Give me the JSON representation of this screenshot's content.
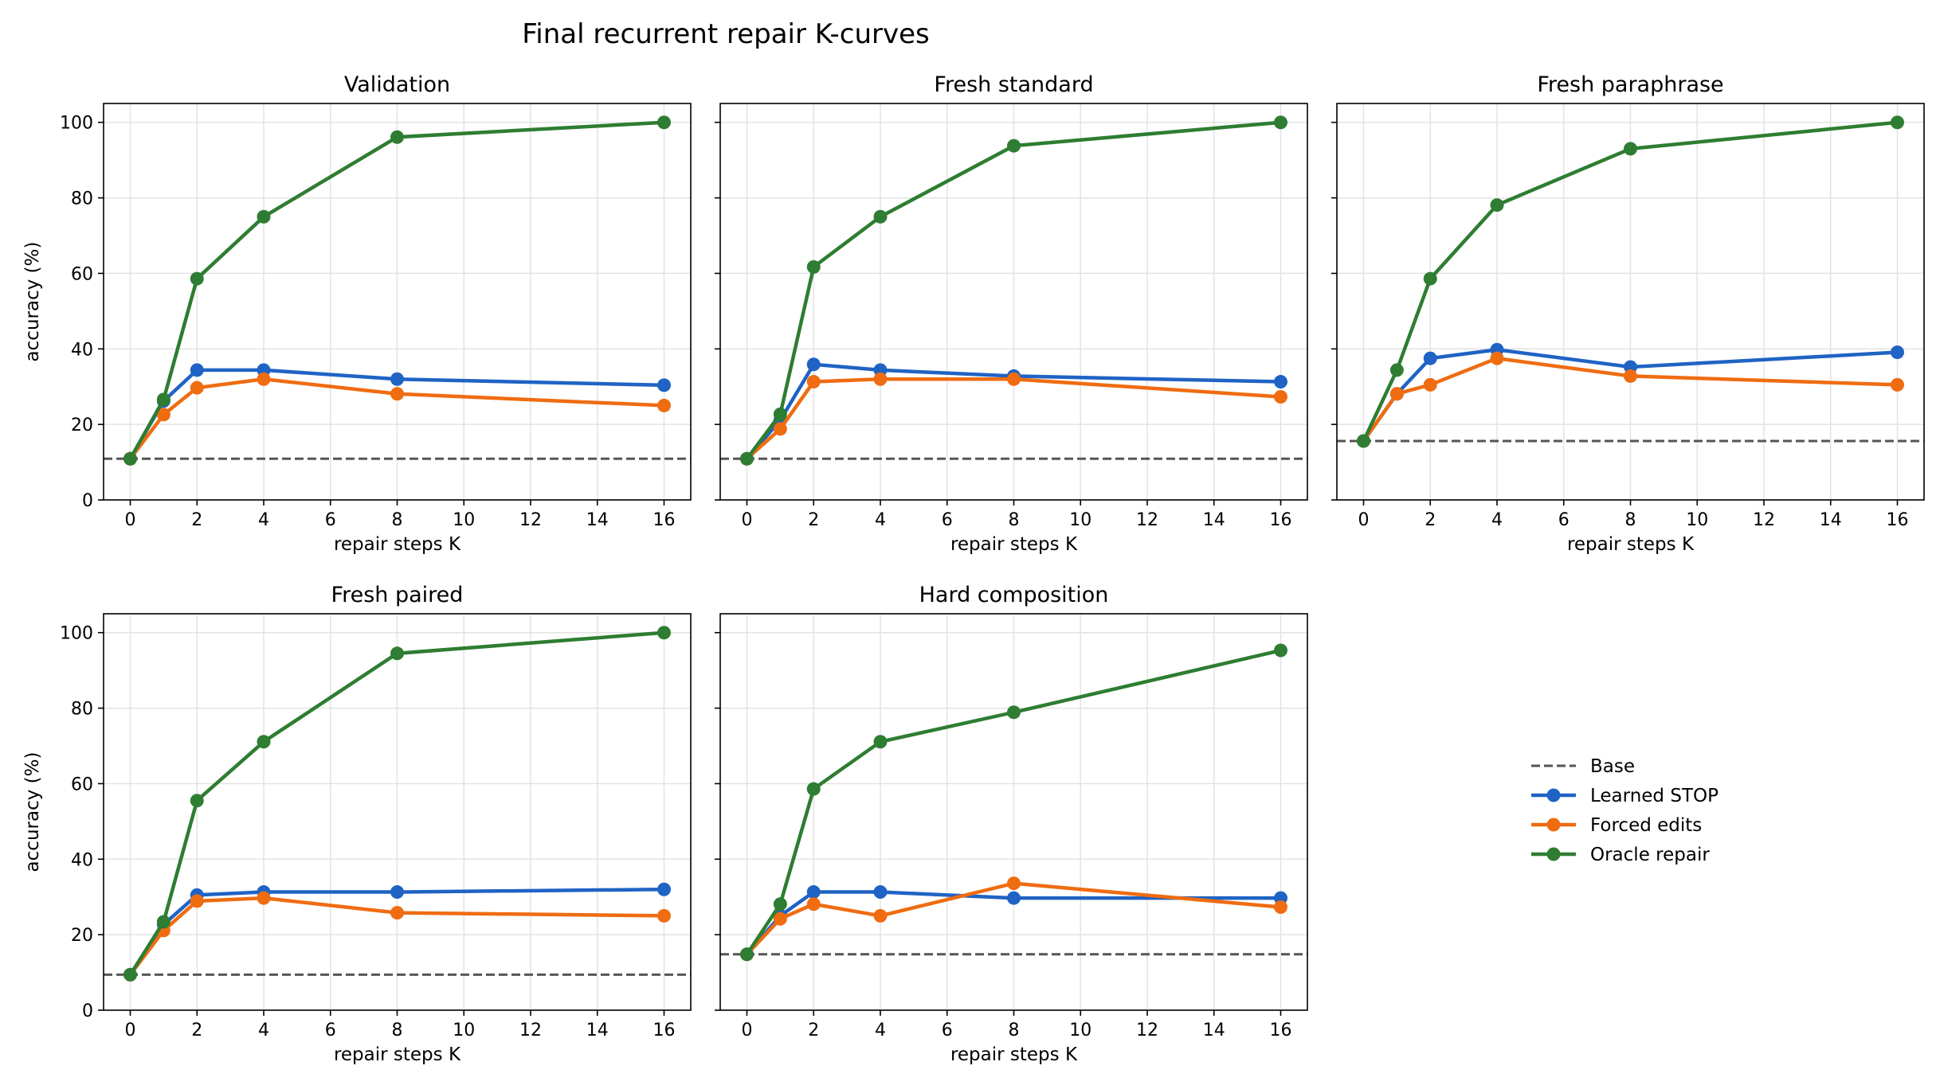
{
  "figure": {
    "title": "Final recurrent repair K-curves"
  },
  "legend": {
    "placement": "lower-right empty panel",
    "entries": [
      {
        "label": "Base",
        "color": "#555555",
        "style": "dashed"
      },
      {
        "label": "Learned STOP",
        "color": "#1f63c4",
        "style": "line-marker"
      },
      {
        "label": "Forced edits",
        "color": "#ef6c11",
        "style": "line-marker"
      },
      {
        "label": "Oracle repair",
        "color": "#2e7d32",
        "style": "line-marker"
      }
    ]
  },
  "chart_data": [
    {
      "type": "line",
      "title": "Validation",
      "xlabel": "repair steps K",
      "ylabel": "accuracy (%)",
      "x": [
        0,
        1,
        2,
        4,
        8,
        16
      ],
      "xlim": [
        -0.8,
        16.8
      ],
      "ylim": [
        0,
        105
      ],
      "xticks": [
        0,
        2,
        4,
        6,
        8,
        10,
        12,
        14,
        16
      ],
      "yticks": [
        0,
        20,
        40,
        60,
        80,
        100
      ],
      "grid": true,
      "base": 10.9,
      "series": [
        {
          "name": "Learned STOP",
          "values": [
            10.9,
            26.2,
            34.4,
            34.4,
            32.0,
            30.4
          ]
        },
        {
          "name": "Forced edits",
          "values": [
            10.9,
            22.6,
            29.7,
            32.0,
            28.1,
            25.0
          ]
        },
        {
          "name": "Oracle repair",
          "values": [
            10.9,
            26.6,
            58.6,
            75.0,
            96.1,
            100.0
          ]
        }
      ]
    },
    {
      "type": "line",
      "title": "Fresh standard",
      "xlabel": "repair steps K",
      "ylabel": "",
      "x": [
        0,
        1,
        2,
        4,
        8,
        16
      ],
      "xlim": [
        -0.8,
        16.8
      ],
      "ylim": [
        0,
        105
      ],
      "xticks": [
        0,
        2,
        4,
        6,
        8,
        10,
        12,
        14,
        16
      ],
      "yticks": [
        0,
        20,
        40,
        60,
        80,
        100
      ],
      "grid": true,
      "base": 10.9,
      "series": [
        {
          "name": "Learned STOP",
          "values": [
            10.9,
            21.1,
            35.9,
            34.4,
            32.8,
            31.3
          ]
        },
        {
          "name": "Forced edits",
          "values": [
            10.9,
            18.8,
            31.3,
            32.0,
            32.0,
            27.3
          ]
        },
        {
          "name": "Oracle repair",
          "values": [
            10.9,
            22.7,
            61.7,
            75.0,
            93.8,
            100.0
          ]
        }
      ]
    },
    {
      "type": "line",
      "title": "Fresh paraphrase",
      "xlabel": "repair steps K",
      "ylabel": "",
      "x": [
        0,
        1,
        2,
        4,
        8,
        16
      ],
      "xlim": [
        -0.8,
        16.8
      ],
      "ylim": [
        0,
        105
      ],
      "xticks": [
        0,
        2,
        4,
        6,
        8,
        10,
        12,
        14,
        16
      ],
      "yticks": [
        0,
        20,
        40,
        60,
        80,
        100
      ],
      "grid": true,
      "base": 15.6,
      "series": [
        {
          "name": "Learned STOP",
          "values": [
            15.6,
            28.1,
            37.5,
            39.8,
            35.2,
            39.1
          ]
        },
        {
          "name": "Forced edits",
          "values": [
            15.6,
            28.1,
            30.5,
            37.5,
            32.8,
            30.5
          ]
        },
        {
          "name": "Oracle repair",
          "values": [
            15.6,
            34.4,
            58.6,
            78.1,
            93.0,
            100.0
          ]
        }
      ]
    },
    {
      "type": "line",
      "title": "Fresh paired",
      "xlabel": "repair steps K",
      "ylabel": "accuracy (%)",
      "x": [
        0,
        1,
        2,
        4,
        8,
        16
      ],
      "xlim": [
        -0.8,
        16.8
      ],
      "ylim": [
        0,
        105
      ],
      "xticks": [
        0,
        2,
        4,
        6,
        8,
        10,
        12,
        14,
        16
      ],
      "yticks": [
        0,
        20,
        40,
        60,
        80,
        100
      ],
      "grid": true,
      "base": 9.4,
      "series": [
        {
          "name": "Learned STOP",
          "values": [
            9.4,
            22.7,
            30.5,
            31.3,
            31.3,
            32.0
          ]
        },
        {
          "name": "Forced edits",
          "values": [
            9.4,
            21.1,
            28.9,
            29.7,
            25.8,
            25.0
          ]
        },
        {
          "name": "Oracle repair",
          "values": [
            9.4,
            23.4,
            55.5,
            71.1,
            94.5,
            100.0
          ]
        }
      ]
    },
    {
      "type": "line",
      "title": "Hard composition",
      "xlabel": "repair steps K",
      "ylabel": "",
      "x": [
        0,
        1,
        2,
        4,
        8,
        16
      ],
      "xlim": [
        -0.8,
        16.8
      ],
      "ylim": [
        0,
        105
      ],
      "xticks": [
        0,
        2,
        4,
        6,
        8,
        10,
        12,
        14,
        16
      ],
      "yticks": [
        0,
        20,
        40,
        60,
        80,
        100
      ],
      "grid": true,
      "base": 14.8,
      "series": [
        {
          "name": "Learned STOP",
          "values": [
            14.8,
            25.0,
            31.3,
            31.3,
            29.7,
            29.7
          ]
        },
        {
          "name": "Forced edits",
          "values": [
            14.8,
            24.2,
            28.1,
            25.0,
            33.6,
            27.3
          ]
        },
        {
          "name": "Oracle repair",
          "values": [
            14.8,
            28.1,
            58.6,
            71.1,
            78.9,
            95.3
          ]
        }
      ]
    }
  ]
}
